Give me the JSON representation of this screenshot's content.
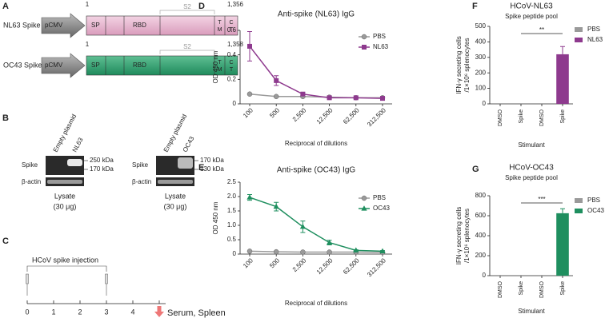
{
  "panel_labels": [
    "A",
    "B",
    "C",
    "D",
    "E",
    "F",
    "G"
  ],
  "constructs": [
    {
      "name": "NL63 Spike",
      "promoter": "pCMV",
      "domains": [
        "SP",
        "RBD"
      ],
      "region": "S2",
      "tm": [
        "T",
        "M"
      ],
      "ct": [
        "C",
        "T"
      ],
      "start": "1",
      "end": "1,356"
    },
    {
      "name": "OC43 Spike",
      "promoter": "pCMV",
      "domains": [
        "SP",
        "RBD"
      ],
      "region": "S2",
      "tm": [
        "T",
        "M"
      ],
      "ct": [
        "C",
        "T"
      ],
      "start": "1",
      "end": "1,358"
    }
  ],
  "blots": [
    {
      "lanes": [
        "Empty plasmid",
        "NL63"
      ],
      "rows": [
        "Spike",
        "β-actin"
      ],
      "markers": [
        "250 kDa",
        "170 kDa"
      ],
      "caption": [
        "Lysate",
        "(30 μg)"
      ]
    },
    {
      "lanes": [
        "Empty plasmid",
        "OC43"
      ],
      "rows": [
        "Spike",
        "β-actin"
      ],
      "markers": [
        "170 kDa",
        "130 kDa"
      ],
      "caption": [
        "Lysate",
        "(30 μg)"
      ]
    }
  ],
  "timeline": {
    "label": "HCoV spike injection",
    "ticks": [
      0,
      1,
      2,
      3,
      4,
      5
    ],
    "endpoint": "Serum, Spleen"
  },
  "chart_data": [
    {
      "type": "line",
      "title": "Anti-spike (NL63) IgG",
      "xlabel": "Reciprocal of dilutions",
      "ylabel": "OD 450 nm",
      "categories": [
        "100",
        "500",
        "2,500",
        "12,500",
        "62,500",
        "312,500"
      ],
      "series": [
        {
          "name": "PBS",
          "color": "#9a9a9a",
          "marker": "circle",
          "values": [
            0.08,
            0.06,
            0.06,
            0.055,
            0.05,
            0.05
          ],
          "errors": [
            0.005,
            0.005,
            0.005,
            0.005,
            0.005,
            0.005
          ]
        },
        {
          "name": "NL63",
          "color": "#8e3a8e",
          "marker": "square",
          "values": [
            0.47,
            0.19,
            0.08,
            0.05,
            0.05,
            0.045
          ],
          "errors": [
            0.12,
            0.04,
            0.01,
            0.005,
            0.005,
            0.005
          ]
        }
      ],
      "ylim": [
        0,
        0.6
      ],
      "yticks": [
        0,
        0.2,
        0.4,
        0.6
      ]
    },
    {
      "type": "line",
      "title": "Anti-spike (OC43) IgG",
      "xlabel": "Reciprocal of dilutions",
      "ylabel": "OD 450 nm",
      "categories": [
        "100",
        "500",
        "2,500",
        "12,500",
        "62,500",
        "312,500"
      ],
      "series": [
        {
          "name": "PBS",
          "color": "#9a9a9a",
          "marker": "circle",
          "values": [
            0.1,
            0.08,
            0.07,
            0.07,
            0.07,
            0.06
          ],
          "errors": [
            0.01,
            0.01,
            0.01,
            0.01,
            0.01,
            0.01
          ]
        },
        {
          "name": "OC43",
          "color": "#1f8f5f",
          "marker": "triangle",
          "values": [
            1.97,
            1.65,
            0.95,
            0.4,
            0.13,
            0.1
          ],
          "errors": [
            0.1,
            0.15,
            0.2,
            0.08,
            0.02,
            0.02
          ]
        }
      ],
      "ylim": [
        0,
        2.5
      ],
      "yticks": [
        0,
        0.5,
        {
          "value": 1,
          "label": "1.0"
        },
        1.5,
        {
          "value": 2,
          "label": "2.0"
        },
        2.5
      ]
    },
    {
      "type": "bar",
      "title": "HCoV-NL63",
      "subtitle": "Spike peptide pool",
      "xlabel": "Stimulant",
      "ylabel": [
        "IFN-γ secreting cells",
        "/1×10⁶ splenocytes"
      ],
      "categories": [
        "DMSO",
        "Spike",
        "DMSO",
        "Spike"
      ],
      "annotation": "**",
      "series": [
        {
          "name": "PBS",
          "color": "#9a9a9a",
          "values": [
            0,
            0,
            null,
            null
          ],
          "errors": [
            null,
            null,
            null,
            null
          ]
        },
        {
          "name": "NL63",
          "color": "#8e3a8e",
          "values": [
            null,
            null,
            0,
            320
          ],
          "errors": [
            null,
            null,
            null,
            50
          ]
        }
      ],
      "ylim": [
        0,
        500
      ],
      "yticks": [
        0,
        100,
        200,
        300,
        400,
        500
      ]
    },
    {
      "type": "bar",
      "title": "HCoV-OC43",
      "subtitle": "Spike peptide pool",
      "xlabel": "Stimulant",
      "ylabel": [
        "IFN-γ secreting cells",
        "/1×10⁶ splenocytes"
      ],
      "categories": [
        "DMSO",
        "Spike",
        "DMSO",
        "Spike"
      ],
      "annotation": "***",
      "series": [
        {
          "name": "PBS",
          "color": "#9a9a9a",
          "values": [
            0,
            0,
            null,
            null
          ],
          "errors": [
            null,
            null,
            null,
            null
          ]
        },
        {
          "name": "OC43",
          "color": "#1f8f5f",
          "values": [
            null,
            null,
            0,
            625
          ],
          "errors": [
            null,
            null,
            null,
            45
          ]
        }
      ],
      "ylim": [
        0,
        800
      ],
      "yticks": [
        0,
        200,
        400,
        600,
        800
      ]
    }
  ]
}
